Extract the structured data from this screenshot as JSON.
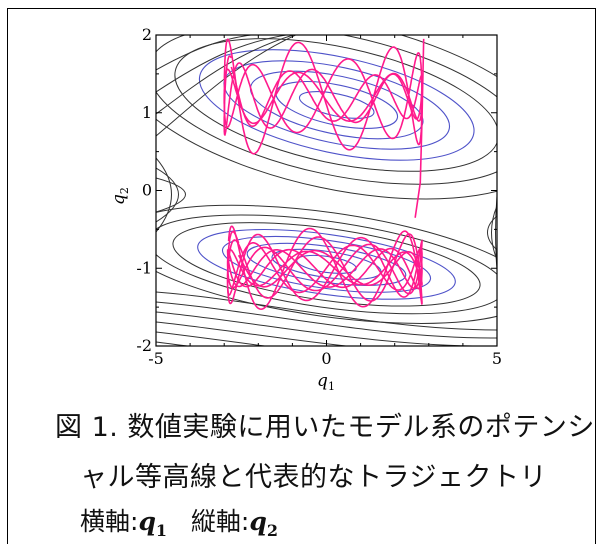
{
  "chart_data": {
    "type": "contour",
    "xlabel": "q1",
    "ylabel": "q2",
    "xlim": [
      -5,
      5
    ],
    "ylim": [
      -2,
      2
    ],
    "x_ticks": [
      "-5",
      "0",
      "5"
    ],
    "y_ticks": [
      "-2",
      "-1",
      "0",
      "1",
      "2"
    ],
    "colors": {
      "contour_outer": "#333333",
      "contour_inner": "#4f53c9",
      "trajectory": "#ff1a8c"
    },
    "wells": [
      {
        "center": [
          0.3,
          1.1
        ]
      },
      {
        "center": [
          0.0,
          -0.95
        ]
      }
    ],
    "trajectories": [
      {
        "region": "upper",
        "q1_range": [
          -3.0,
          2.8
        ],
        "q2_range": [
          0.4,
          2.0
        ]
      },
      {
        "region": "lower",
        "q1_range": [
          -2.9,
          2.8
        ],
        "q2_range": [
          -1.65,
          -0.35
        ]
      }
    ]
  },
  "caption": {
    "line1": "図 1. 数値実験に用いたモデル系のポテンシ",
    "line2": "ャル等高線と代表的なトラジェクトリ",
    "line3_prefix": "横軸:",
    "line3_mid": "縦軸:",
    "var_name": "q",
    "x_sub": "1",
    "y_sub": "2"
  }
}
